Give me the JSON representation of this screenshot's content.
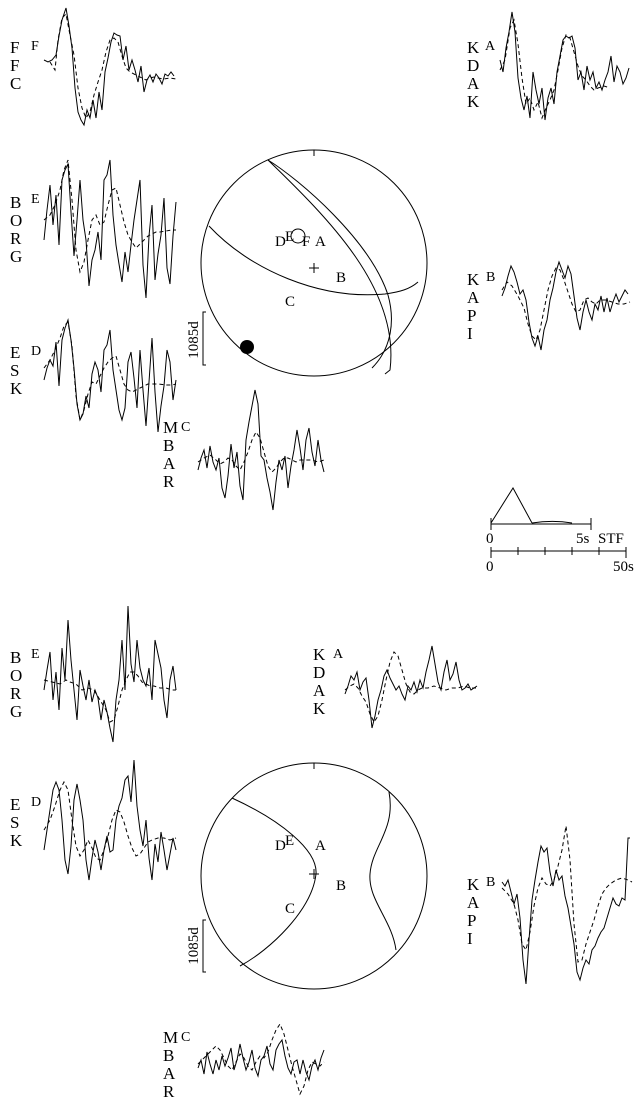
{
  "scale_label": "1085d",
  "stf": {
    "label": "STF",
    "tick_start": "0",
    "tick_end": "5s"
  },
  "timeline": {
    "tick_start": "0",
    "tick_end": "50s"
  },
  "panels": [
    {
      "id": "upper",
      "stations": [
        {
          "name": [
            "F",
            "F",
            "C"
          ],
          "letter": "F"
        },
        {
          "name": [
            "K",
            "D",
            "A",
            "K"
          ],
          "letter": "A"
        },
        {
          "name": [
            "B",
            "O",
            "R",
            "G"
          ],
          "letter": "E"
        },
        {
          "name": [
            "K",
            "A",
            "P",
            "I"
          ],
          "letter": "B"
        },
        {
          "name": [
            "E",
            "S",
            "K"
          ],
          "letter": "D"
        },
        {
          "name": [
            "M",
            "B",
            "A",
            "R"
          ],
          "letter": "C"
        }
      ],
      "sphere_labels": [
        "D",
        "E",
        "F",
        "A",
        "B",
        "C"
      ],
      "traces": [
        {
          "obs": [
            3,
            -10,
            -34,
            -45,
            -55,
            -31,
            9,
            23,
            42,
            14,
            -13,
            -30,
            -10,
            25,
            6,
            38,
            -10,
            -5,
            -28,
            -9,
            -40,
            -8,
            -16,
            7,
            -35,
            32,
            -3,
            -15,
            -2,
            -48,
            -52,
            -39,
            -27,
            -25,
            8,
            -36,
            -16,
            -28,
            -29,
            -12,
            -11,
            1,
            -12,
            -10,
            -7,
            -12
          ],
          "syn": [
            -28,
            -34,
            -43,
            -30,
            7,
            35,
            33,
            15,
            -12,
            -34,
            -39,
            -37,
            -10,
            8,
            13,
            4,
            -13,
            -33,
            -24,
            -21,
            -13,
            -13,
            -7,
            -19,
            -20,
            -12,
            -19,
            -11,
            -11,
            -7,
            -30,
            -50,
            -48,
            -38,
            -15,
            -7,
            -15,
            -9,
            -27,
            -34,
            -30,
            -8,
            -8,
            -15,
            -19,
            -15
          ]
        },
        {
          "obs": [
            -26,
            -7,
            17,
            -7,
            -6,
            -43,
            -47,
            -53,
            -7,
            -52,
            -18,
            8,
            -42,
            -7,
            18,
            16,
            -45,
            -33,
            -5,
            -31,
            -38,
            14,
            1,
            8,
            -16,
            -43,
            -31,
            -30,
            -28,
            -22,
            11,
            17,
            -17,
            -4,
            -4,
            -10,
            -33,
            -17,
            -23,
            -10,
            -20,
            -17,
            -15,
            -17,
            -15,
            -6
          ],
          "syn": [
            -4,
            -30,
            -51,
            -53,
            -33,
            7,
            -45,
            -14,
            -17,
            -26,
            -36,
            -31,
            -51,
            -32,
            -11,
            5,
            -8,
            -33,
            -30,
            -17,
            -24,
            -27,
            -33,
            -11,
            -27,
            -4,
            -13,
            -18,
            -17,
            -20,
            -14,
            -32,
            -23,
            -25,
            -18,
            -20,
            -10,
            -18,
            -18,
            -3,
            -11,
            -12,
            -20,
            -15,
            -13,
            -14
          ]
        }
      ]
    },
    {
      "id": "lower",
      "stations": [
        {
          "name": [
            "B",
            "O",
            "R",
            "G"
          ],
          "letter": "E"
        },
        {
          "name": [
            "K",
            "D",
            "A",
            "K"
          ],
          "letter": "A"
        },
        {
          "name": [
            "E",
            "S",
            "K"
          ],
          "letter": "D"
        },
        {
          "name": [
            "K",
            "A",
            "P",
            "I"
          ],
          "letter": "B"
        },
        {
          "name": [
            "M",
            "B",
            "A",
            "R"
          ],
          "letter": "C"
        }
      ],
      "sphere_labels": [
        "D",
        "E",
        "A",
        "B",
        "C"
      ]
    }
  ]
}
